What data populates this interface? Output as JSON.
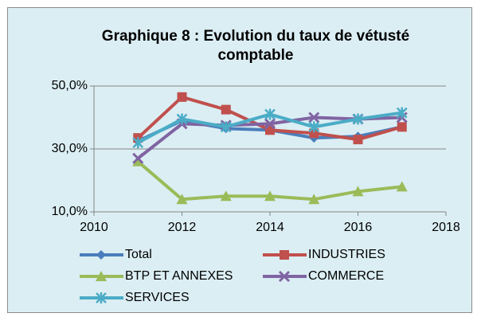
{
  "chart_data": {
    "type": "line",
    "title": "Graphique 8 : Evolution du taux de vétusté comptable",
    "x": [
      2011,
      2012,
      2013,
      2014,
      2015,
      2016,
      2017
    ],
    "series": [
      {
        "name": "Total",
        "color": "#4a7ebb",
        "values": [
          32.5,
          39,
          36.5,
          36,
          33.5,
          34,
          37
        ]
      },
      {
        "name": "INDUSTRIES",
        "color": "#c0504d",
        "values": [
          33.5,
          46.5,
          42.5,
          36,
          35,
          33,
          37
        ]
      },
      {
        "name": "BTP ET ANNEXES",
        "color": "#9bbb59",
        "values": [
          26,
          14,
          15,
          15,
          14,
          16.5,
          18
        ]
      },
      {
        "name": "COMMERCE",
        "color": "#8064a2",
        "values": [
          27,
          38,
          37.5,
          38,
          40,
          39.5,
          40
        ]
      },
      {
        "name": "SERVICES",
        "color": "#4bacc6",
        "values": [
          32,
          39.5,
          37,
          41,
          37,
          39.5,
          41.5
        ]
      }
    ],
    "xlim": [
      2010,
      2018
    ],
    "xticks": [
      2010,
      2012,
      2014,
      2016,
      2018
    ],
    "ylim": [
      10,
      50
    ],
    "yticks": [
      {
        "value": 10,
        "label": "10,0%"
      },
      {
        "value": 30,
        "label": "30,0%"
      },
      {
        "value": 50,
        "label": "50,0%"
      }
    ],
    "grid": true
  }
}
